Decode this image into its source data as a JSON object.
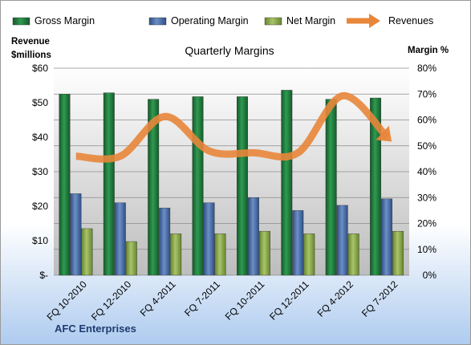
{
  "chart_data": {
    "type": "bar",
    "title": "Quarterly Margins",
    "company": "AFC Enterprises",
    "ylabel_left": [
      "Revenue",
      "$millions"
    ],
    "ylabel_right": "Margin %",
    "categories": [
      "FQ 10-2010",
      "FQ 12-2010",
      "FQ 4-2011",
      "FQ 7-2011",
      "FQ 10-2011",
      "FQ 12-2011",
      "FQ 4-2012",
      "FQ 7-2012"
    ],
    "left_axis": {
      "min": 0,
      "max": 60,
      "step": 10,
      "tick_labels": [
        "$-",
        "$10",
        "$20",
        "$30",
        "$40",
        "$50",
        "$60"
      ]
    },
    "right_axis": {
      "min": 0,
      "max": 80,
      "step": 10,
      "tick_labels": [
        "0%",
        "10%",
        "20%",
        "30%",
        "40%",
        "50%",
        "60%",
        "70%",
        "80%"
      ]
    },
    "series": [
      {
        "name": "Gross Margin",
        "kind": "bar",
        "axis": "right",
        "color": "#1e7a3c",
        "values": [
          70,
          70.5,
          68,
          69,
          69,
          71.5,
          68,
          68.5
        ]
      },
      {
        "name": "Operating Margin",
        "kind": "bar",
        "axis": "right",
        "color": "#4a6ea8",
        "values": [
          31.5,
          28,
          26,
          28,
          30,
          25,
          27,
          29.5
        ]
      },
      {
        "name": "Net Margin",
        "kind": "bar",
        "axis": "right",
        "color": "#8cad4a",
        "values": [
          18,
          13,
          16,
          16,
          17,
          16,
          16,
          17
        ]
      },
      {
        "name": "Revenues",
        "kind": "line",
        "axis": "left",
        "color": "#e8863a",
        "values": [
          34.5,
          34.5,
          46,
          36,
          35.5,
          35.5,
          52,
          40
        ]
      }
    ],
    "grid": true,
    "legend_position": "top"
  }
}
